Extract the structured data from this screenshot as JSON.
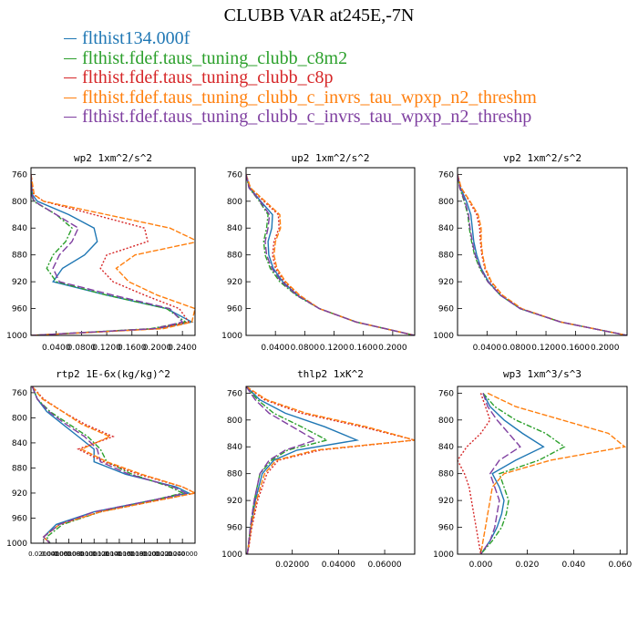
{
  "title": "CLUBB VAR at245E,-7N",
  "legend": [
    {
      "label": "flthist134.000f",
      "color": "#1f77b4",
      "dash": ""
    },
    {
      "label": "flthist.fdef.taus_tuning_clubb_c8m2",
      "color": "#2ca02c",
      "dash": "6,2,2,2"
    },
    {
      "label": "flthist.fdef.taus_tuning_clubb_c8p",
      "color": "#d62728",
      "dash": "2,2"
    },
    {
      "label": "flthist.fdef.taus_tuning_clubb_c_invrs_tau_wpxp_n2_threshm",
      "color": "#ff7f0e",
      "dash": "6,2"
    },
    {
      "label": "flthist.fdef.taus_tuning_clubb_c_invrs_tau_wpxp_n2_threshp",
      "color": "#7f3fa0",
      "dash": "8,3"
    }
  ],
  "chart_data": [
    {
      "type": "line",
      "title": "wp2  1xm^2/s^2",
      "xlim": [
        0,
        0.26
      ],
      "ylim": [
        1000,
        750
      ],
      "xticks": [
        0.04,
        0.08,
        0.12,
        0.16,
        0.2,
        0.24
      ],
      "xtick_labels": [
        "0.0400",
        "0.0800",
        "0.1200",
        "0.1600",
        "0.2000",
        "0.2400"
      ],
      "yticks": [
        760,
        800,
        840,
        880,
        920,
        960,
        1000
      ],
      "ytick_labels": [
        "760",
        "800",
        "840",
        "880",
        "920",
        "960",
        "1000"
      ],
      "y": [
        760,
        790,
        800,
        820,
        840,
        860,
        880,
        900,
        920,
        940,
        960,
        980,
        990,
        1000
      ],
      "series": [
        {
          "values": [
            0,
            0.002,
            0.01,
            0.06,
            0.1,
            0.105,
            0.085,
            0.05,
            0.035,
            0.12,
            0.215,
            0.255,
            0.2,
            0.001
          ]
        },
        {
          "values": [
            0,
            0.001,
            0.004,
            0.04,
            0.065,
            0.055,
            0.035,
            0.025,
            0.04,
            0.12,
            0.215,
            0.245,
            0.19,
            0.001
          ]
        },
        {
          "values": [
            0,
            0.004,
            0.02,
            0.1,
            0.18,
            0.185,
            0.12,
            0.11,
            0.13,
            0.18,
            0.235,
            0.25,
            0.2,
            0.001
          ]
        },
        {
          "values": [
            0,
            0.005,
            0.02,
            0.12,
            0.22,
            0.265,
            0.165,
            0.135,
            0.155,
            0.2,
            0.26,
            0.255,
            0.21,
            0.001
          ]
        },
        {
          "values": [
            0,
            0.001,
            0.005,
            0.04,
            0.075,
            0.065,
            0.045,
            0.035,
            0.045,
            0.13,
            0.22,
            0.24,
            0.195,
            0.001
          ]
        }
      ]
    },
    {
      "type": "line",
      "title": "up2  1xm^2/s^2",
      "xlim": [
        0,
        0.23
      ],
      "ylim": [
        1000,
        750
      ],
      "xticks": [
        0.04,
        0.08,
        0.12,
        0.16,
        0.2
      ],
      "xtick_labels": [
        "0.0400",
        "0.0800",
        "0.1200",
        "0.1600",
        "0.2000"
      ],
      "yticks": [
        760,
        800,
        840,
        880,
        920,
        960,
        1000
      ],
      "ytick_labels": [
        "760",
        "800",
        "840",
        "880",
        "920",
        "960",
        "1000"
      ],
      "y": [
        760,
        780,
        800,
        820,
        840,
        860,
        880,
        900,
        920,
        940,
        960,
        980,
        1000
      ],
      "series": [
        {
          "values": [
            0,
            0.005,
            0.02,
            0.036,
            0.035,
            0.03,
            0.031,
            0.037,
            0.05,
            0.07,
            0.1,
            0.15,
            0.23
          ]
        },
        {
          "values": [
            0,
            0.004,
            0.018,
            0.03,
            0.028,
            0.024,
            0.026,
            0.033,
            0.046,
            0.068,
            0.1,
            0.15,
            0.23
          ]
        },
        {
          "values": [
            0,
            0.006,
            0.024,
            0.044,
            0.045,
            0.038,
            0.036,
            0.04,
            0.052,
            0.072,
            0.1,
            0.15,
            0.23
          ]
        },
        {
          "values": [
            0,
            0.006,
            0.026,
            0.046,
            0.047,
            0.04,
            0.038,
            0.042,
            0.054,
            0.073,
            0.1,
            0.15,
            0.23
          ]
        },
        {
          "values": [
            0,
            0.004,
            0.019,
            0.032,
            0.03,
            0.026,
            0.028,
            0.035,
            0.048,
            0.069,
            0.1,
            0.15,
            0.23
          ]
        }
      ]
    },
    {
      "type": "line",
      "title": "vp2  1xm^2/s^2",
      "xlim": [
        0,
        0.23
      ],
      "ylim": [
        1000,
        750
      ],
      "xticks": [
        0.04,
        0.08,
        0.12,
        0.16,
        0.2
      ],
      "xtick_labels": [
        "0.0400",
        "0.0800",
        "0.1200",
        "0.1600",
        "0.2000"
      ],
      "yticks": [
        760,
        800,
        840,
        880,
        920,
        960,
        1000
      ],
      "ytick_labels": [
        "760",
        "800",
        "840",
        "880",
        "920",
        "960",
        "1000"
      ],
      "y": [
        760,
        780,
        800,
        820,
        840,
        860,
        880,
        900,
        920,
        940,
        960,
        980,
        1000
      ],
      "series": [
        {
          "values": [
            0,
            0.004,
            0.012,
            0.018,
            0.02,
            0.022,
            0.026,
            0.032,
            0.042,
            0.058,
            0.085,
            0.14,
            0.23
          ]
        },
        {
          "values": [
            0,
            0.003,
            0.009,
            0.014,
            0.016,
            0.019,
            0.023,
            0.03,
            0.041,
            0.058,
            0.085,
            0.14,
            0.23
          ]
        },
        {
          "values": [
            0,
            0.005,
            0.016,
            0.026,
            0.03,
            0.031,
            0.033,
            0.037,
            0.045,
            0.06,
            0.086,
            0.14,
            0.23
          ]
        },
        {
          "values": [
            0,
            0.005,
            0.017,
            0.028,
            0.032,
            0.032,
            0.034,
            0.038,
            0.046,
            0.061,
            0.087,
            0.14,
            0.23
          ]
        },
        {
          "values": [
            0,
            0.003,
            0.01,
            0.015,
            0.017,
            0.02,
            0.024,
            0.031,
            0.041,
            0.058,
            0.085,
            0.14,
            0.23
          ]
        }
      ]
    },
    {
      "type": "line",
      "title": "rtp2  1E-6x(kg/kg)^2",
      "xlim": [
        0,
        0.26
      ],
      "ylim": [
        1000,
        750
      ],
      "xticks": [
        0.02,
        0.04,
        0.06,
        0.08,
        0.1,
        0.12,
        0.14,
        0.16,
        0.18,
        0.2,
        0.22,
        0.24
      ],
      "xtick_labels": [
        "0.020000",
        "0.040000",
        "0.060000",
        "0.080000",
        "0.100000",
        "0.120000",
        "0.140000",
        "0.160000",
        "0.180000",
        "0.200000",
        "0.220000",
        "0.240000"
      ],
      "yticks": [
        760,
        800,
        840,
        880,
        920,
        960,
        1000
      ],
      "ytick_labels": [
        "760",
        "800",
        "840",
        "880",
        "920",
        "960",
        "1000"
      ],
      "y": [
        750,
        770,
        790,
        810,
        830,
        850,
        870,
        890,
        910,
        920,
        930,
        950,
        970,
        990,
        1000
      ],
      "series": [
        {
          "values": [
            0.002,
            0.01,
            0.025,
            0.05,
            0.075,
            0.1,
            0.1,
            0.15,
            0.23,
            0.25,
            0.2,
            0.1,
            0.04,
            0.02,
            0.03
          ]
        },
        {
          "values": [
            0.002,
            0.01,
            0.03,
            0.06,
            0.09,
            0.11,
            0.12,
            0.16,
            0.22,
            0.24,
            0.2,
            0.11,
            0.05,
            0.025,
            0.03
          ]
        },
        {
          "values": [
            0.002,
            0.02,
            0.05,
            0.085,
            0.13,
            0.075,
            0.115,
            0.17,
            0.24,
            0.26,
            0.21,
            0.11,
            0.045,
            0.02,
            0.03
          ]
        },
        {
          "values": [
            0.002,
            0.018,
            0.05,
            0.08,
            0.125,
            0.08,
            0.12,
            0.175,
            0.24,
            0.26,
            0.21,
            0.11,
            0.045,
            0.02,
            0.03
          ]
        },
        {
          "values": [
            0.002,
            0.01,
            0.028,
            0.055,
            0.085,
            0.105,
            0.11,
            0.155,
            0.225,
            0.245,
            0.2,
            0.1,
            0.045,
            0.02,
            0.03
          ]
        }
      ]
    },
    {
      "type": "line",
      "title": "thlp2  1xK^2",
      "xlim": [
        0,
        0.073
      ],
      "ylim": [
        1000,
        750
      ],
      "xticks": [
        0.02,
        0.04,
        0.06
      ],
      "xtick_labels": [
        "0.02000",
        "0.04000",
        "0.06000"
      ],
      "yticks": [
        760,
        800,
        840,
        880,
        920,
        960,
        1000
      ],
      "ytick_labels": [
        "760",
        "800",
        "840",
        "880",
        "920",
        "960",
        "1000"
      ],
      "y": [
        750,
        770,
        790,
        810,
        830,
        845,
        860,
        880,
        920,
        960,
        990,
        1000
      ],
      "series": [
        {
          "values": [
            0,
            0.006,
            0.017,
            0.034,
            0.048,
            0.022,
            0.012,
            0.007,
            0.004,
            0.002,
            0.001,
            0.0005
          ]
        },
        {
          "values": [
            0,
            0.005,
            0.012,
            0.024,
            0.035,
            0.018,
            0.011,
            0.006,
            0.0035,
            0.0018,
            0.0009,
            0.0005
          ]
        },
        {
          "values": [
            0,
            0.008,
            0.024,
            0.05,
            0.073,
            0.032,
            0.014,
            0.009,
            0.005,
            0.0025,
            0.0012,
            0.0005
          ]
        },
        {
          "values": [
            0,
            0.009,
            0.026,
            0.052,
            0.073,
            0.03,
            0.013,
            0.008,
            0.0045,
            0.0022,
            0.001,
            0.0005
          ]
        },
        {
          "values": [
            0,
            0.004,
            0.01,
            0.02,
            0.03,
            0.017,
            0.01,
            0.006,
            0.0035,
            0.0018,
            0.0009,
            0.0005
          ]
        }
      ]
    },
    {
      "type": "line",
      "title": "wp3  1xm^3/s^3",
      "xlim": [
        -0.01,
        0.063
      ],
      "ylim": [
        1000,
        750
      ],
      "xticks": [
        0.0,
        0.02,
        0.04,
        0.06
      ],
      "xtick_labels": [
        "0.000",
        "0.020",
        "0.040",
        "0.060"
      ],
      "yticks": [
        760,
        800,
        840,
        880,
        920,
        960,
        1000
      ],
      "ytick_labels": [
        "760",
        "800",
        "840",
        "880",
        "920",
        "960",
        "1000"
      ],
      "y": [
        760,
        780,
        800,
        820,
        840,
        860,
        880,
        900,
        920,
        940,
        960,
        980,
        1000
      ],
      "series": [
        {
          "values": [
            0.001,
            0.004,
            0.01,
            0.018,
            0.027,
            0.015,
            0.005,
            0.008,
            0.01,
            0.009,
            0.007,
            0.004,
            0.0
          ]
        },
        {
          "values": [
            0.001,
            0.006,
            0.015,
            0.028,
            0.036,
            0.025,
            0.008,
            0.01,
            0.012,
            0.011,
            0.009,
            0.005,
            0.0
          ]
        },
        {
          "values": [
            0.0,
            0.002,
            0.004,
            0.0,
            -0.006,
            -0.01,
            -0.007,
            -0.005,
            -0.004,
            -0.003,
            -0.002,
            -0.001,
            0.0
          ]
        },
        {
          "values": [
            0.003,
            0.015,
            0.035,
            0.055,
            0.062,
            0.03,
            0.01,
            0.005,
            0.004,
            0.003,
            0.002,
            0.001,
            0.0
          ]
        },
        {
          "values": [
            0.001,
            0.003,
            0.007,
            0.012,
            0.017,
            0.008,
            0.004,
            0.006,
            0.008,
            0.007,
            0.006,
            0.004,
            0.0
          ]
        }
      ]
    }
  ]
}
